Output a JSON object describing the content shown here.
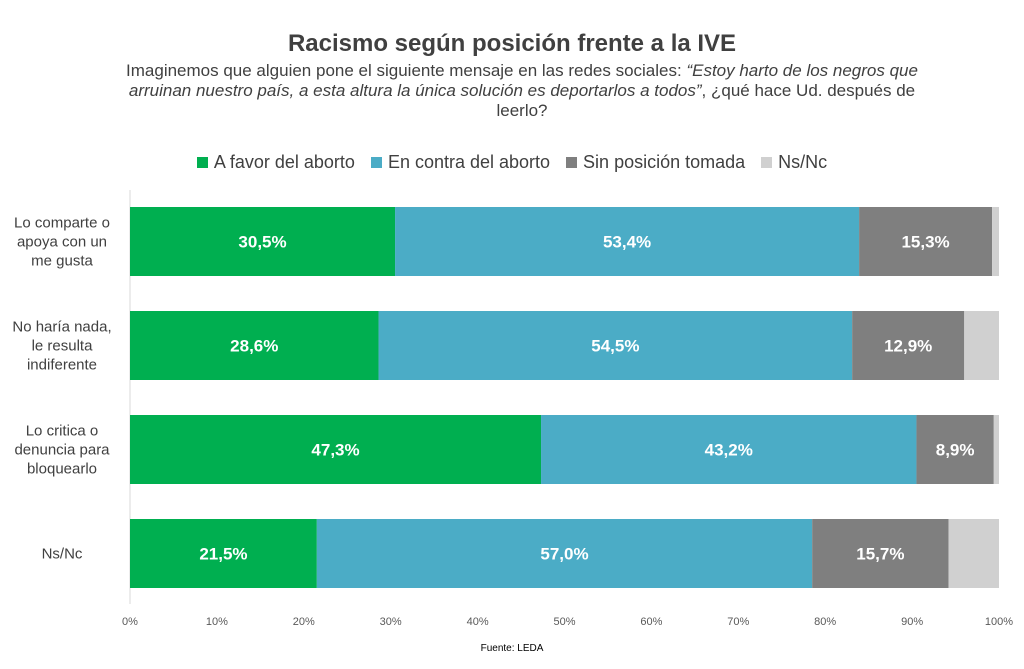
{
  "subtitle": {
    "before": "Imaginemos que alguien pone el siguiente mensaje en las redes sociales: ",
    "quote": "“Estoy harto de los negros que arruinan nuestro país, a esta altura la única solución es deportarlos a todos”",
    "after": ", ¿qué hace Ud. después de leerlo?"
  },
  "source": "Fuente: LEDA",
  "chart_data": {
    "type": "bar",
    "orientation": "horizontal",
    "stacked": true,
    "title": "Racismo según posición frente a la IVE",
    "categories": [
      [
        "Lo comparte o",
        "apoya con un",
        "me gusta"
      ],
      [
        "No haría nada,",
        "le resulta",
        "indiferente"
      ],
      [
        "Lo critica o",
        "denuncia para",
        "bloquearlo"
      ],
      [
        "Ns/Nc"
      ]
    ],
    "series": [
      {
        "name": "A favor del aborto",
        "color": "#00AF50",
        "values": [
          30.5,
          28.6,
          47.3,
          21.5
        ],
        "labels": [
          "30,5%",
          "28,6%",
          "47,3%",
          "21,5%"
        ]
      },
      {
        "name": "En contra del aborto",
        "color": "#4BACC6",
        "values": [
          53.4,
          54.5,
          43.2,
          57.0
        ],
        "labels": [
          "53,4%",
          "54,5%",
          "43,2%",
          "57,0%"
        ]
      },
      {
        "name": "Sin posición tomada",
        "color": "#7F7F7F",
        "values": [
          15.3,
          12.9,
          8.9,
          15.7
        ],
        "labels": [
          "15,3%",
          "12,9%",
          "8,9%",
          "15,7%"
        ]
      },
      {
        "name": "Ns/Nc",
        "color": "#D0D0D0",
        "values": [
          0.8,
          4.0,
          0.6,
          5.8
        ],
        "labels": [
          "",
          "",
          "",
          ""
        ]
      }
    ],
    "xlim": [
      0,
      100
    ],
    "xticks": [
      "0%",
      "10%",
      "20%",
      "30%",
      "40%",
      "50%",
      "60%",
      "70%",
      "80%",
      "90%",
      "100%"
    ],
    "legend": "top",
    "grid": false
  }
}
